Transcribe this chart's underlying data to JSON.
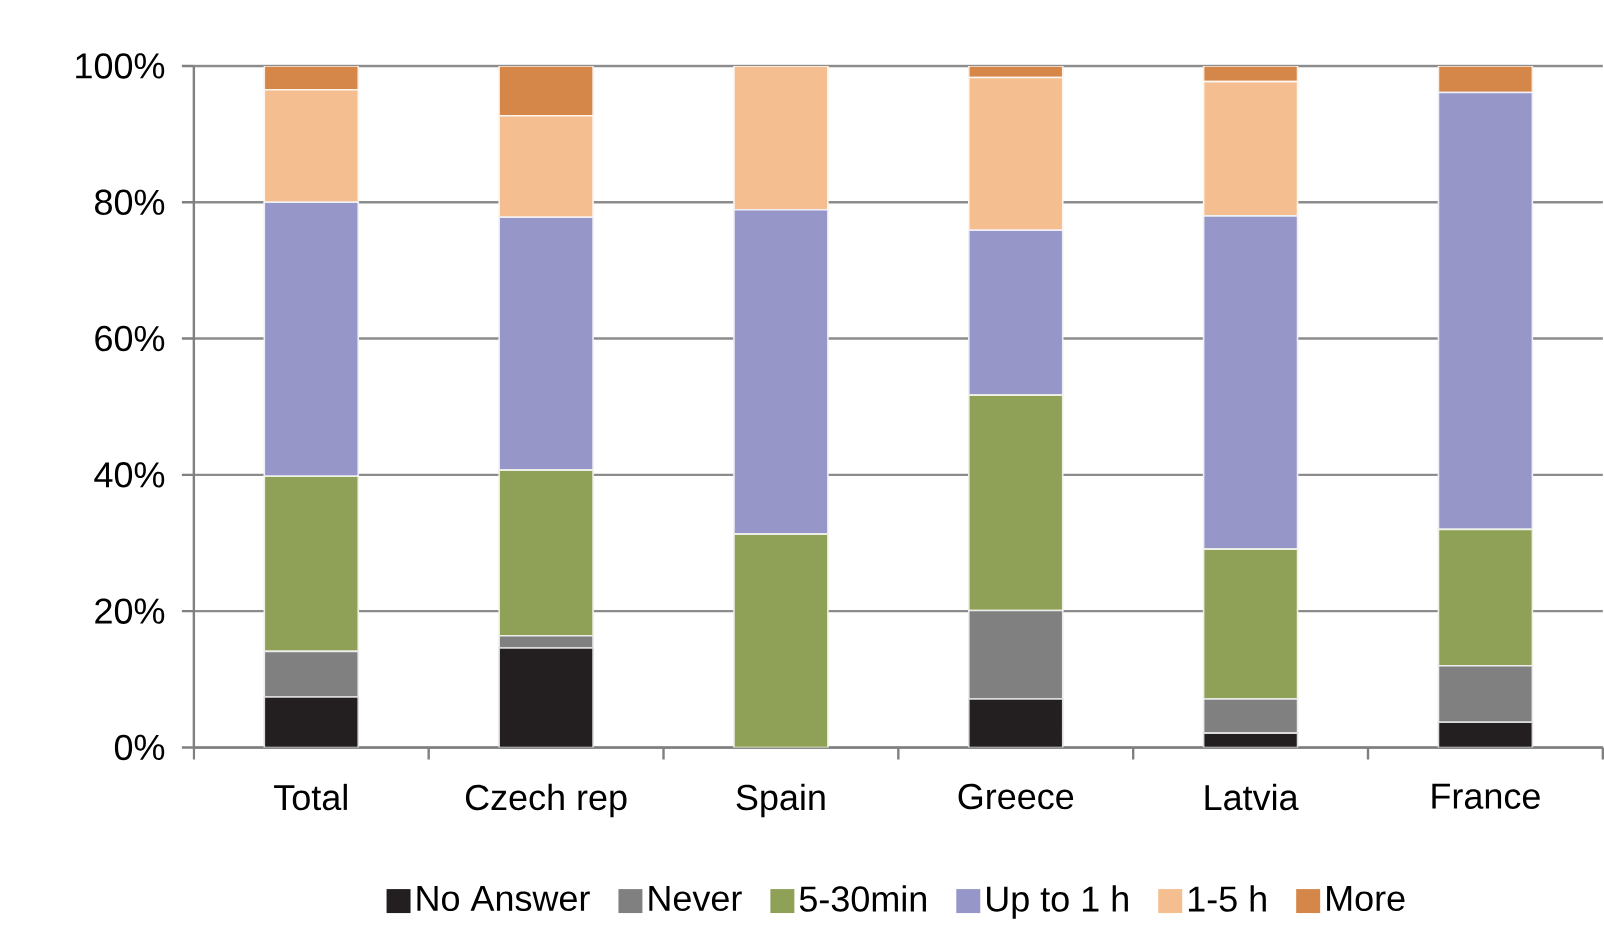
{
  "chart_data": {
    "type": "bar",
    "stacked": true,
    "categories": [
      "Total",
      "Czech rep",
      "Spain",
      "Greece",
      "Latvia",
      "France"
    ],
    "series": [
      {
        "name": "No Answer",
        "color": "#231f20",
        "values": [
          7.4,
          14.6,
          0,
          7.1,
          2.1,
          3.7
        ]
      },
      {
        "name": "Never",
        "color": "#808080",
        "values": [
          6.7,
          1.8,
          0,
          13.0,
          5.0,
          8.3
        ]
      },
      {
        "name": "5-30min",
        "color": "#8fa157",
        "values": [
          25.7,
          24.3,
          31.3,
          31.6,
          22.0,
          20.0
        ]
      },
      {
        "name": "Up to 1 h",
        "color": "#9696c8",
        "values": [
          40.2,
          37.1,
          47.6,
          24.2,
          48.9,
          64.1
        ]
      },
      {
        "name": "1-5 h",
        "color": "#f5be91",
        "values": [
          16.5,
          14.9,
          21.1,
          22.4,
          19.7,
          0
        ]
      },
      {
        "name": "More",
        "color": "#d5874a",
        "values": [
          3.5,
          7.3,
          0,
          1.7,
          2.3,
          3.9
        ]
      }
    ],
    "ylim": [
      0,
      100
    ],
    "yticks": [
      {
        "value": 0,
        "label": "0%"
      },
      {
        "value": 20,
        "label": "20%"
      },
      {
        "value": 40,
        "label": "40%"
      },
      {
        "value": 60,
        "label": "60%"
      },
      {
        "value": 80,
        "label": "80%"
      },
      {
        "value": 100,
        "label": "100%"
      }
    ],
    "grid": "y",
    "legend": "bottom"
  }
}
